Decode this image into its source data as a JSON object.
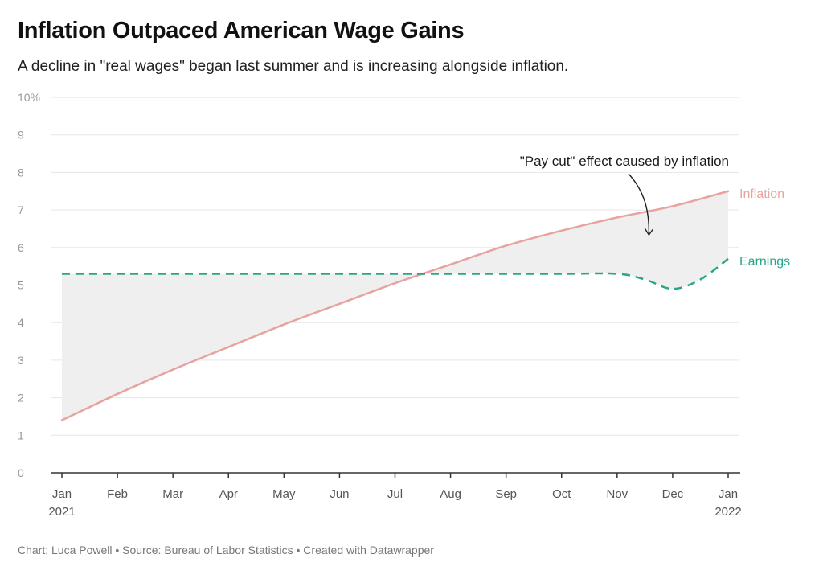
{
  "header": {
    "title": "Inflation Outpaced American Wage Gains",
    "subtitle": "A decline in \"real wages\" began last summer and is increasing alongside inflation."
  },
  "footer": {
    "credit": "Chart: Luca Powell • Source: Bureau of Labor Statistics • Created with Datawrapper"
  },
  "chart_data": {
    "type": "line",
    "title": "Inflation Outpaced American Wage Gains",
    "subtitle": "A decline in \"real wages\" began last summer and is increasing alongside inflation.",
    "xlabel": "",
    "ylabel": "",
    "ylim": [
      0,
      10
    ],
    "y_ticks": [
      "0",
      "1",
      "2",
      "3",
      "4",
      "5",
      "6",
      "7",
      "8",
      "9",
      "10%"
    ],
    "x_ticks": [
      {
        "label": "Jan",
        "sub": "2021"
      },
      {
        "label": "Feb",
        "sub": ""
      },
      {
        "label": "Mar",
        "sub": ""
      },
      {
        "label": "Apr",
        "sub": ""
      },
      {
        "label": "May",
        "sub": ""
      },
      {
        "label": "Jun",
        "sub": ""
      },
      {
        "label": "Jul",
        "sub": ""
      },
      {
        "label": "Aug",
        "sub": ""
      },
      {
        "label": "Sep",
        "sub": ""
      },
      {
        "label": "Oct",
        "sub": ""
      },
      {
        "label": "Nov",
        "sub": ""
      },
      {
        "label": "Dec",
        "sub": ""
      },
      {
        "label": "Jan",
        "sub": "2022"
      }
    ],
    "grid": true,
    "series": [
      {
        "name": "Inflation",
        "color": "#e8a3a0",
        "style": "solid",
        "x": [
          0,
          1,
          2,
          3,
          4,
          5,
          6,
          7,
          8,
          9,
          10,
          11,
          12
        ],
        "values": [
          1.4,
          2.1,
          2.75,
          3.35,
          3.95,
          4.5,
          5.05,
          5.55,
          6.05,
          6.45,
          6.8,
          7.1,
          7.5
        ]
      },
      {
        "name": "Earnings",
        "color": "#2aa58a",
        "style": "dashed",
        "x": [
          0,
          1,
          2,
          3,
          4,
          5,
          6,
          7,
          8,
          9,
          10,
          10.5,
          11,
          11.5,
          12
        ],
        "values": [
          5.3,
          5.3,
          5.3,
          5.3,
          5.3,
          5.3,
          5.3,
          5.3,
          5.3,
          5.3,
          5.3,
          5.15,
          4.9,
          5.15,
          5.7
        ]
      }
    ],
    "shaded_area": {
      "between": [
        "Inflation",
        "Earnings"
      ],
      "color": "#efefef"
    },
    "annotation": {
      "text": "\"Pay cut\" effect caused by inflation",
      "x": 10.5,
      "y": 6.4
    }
  }
}
